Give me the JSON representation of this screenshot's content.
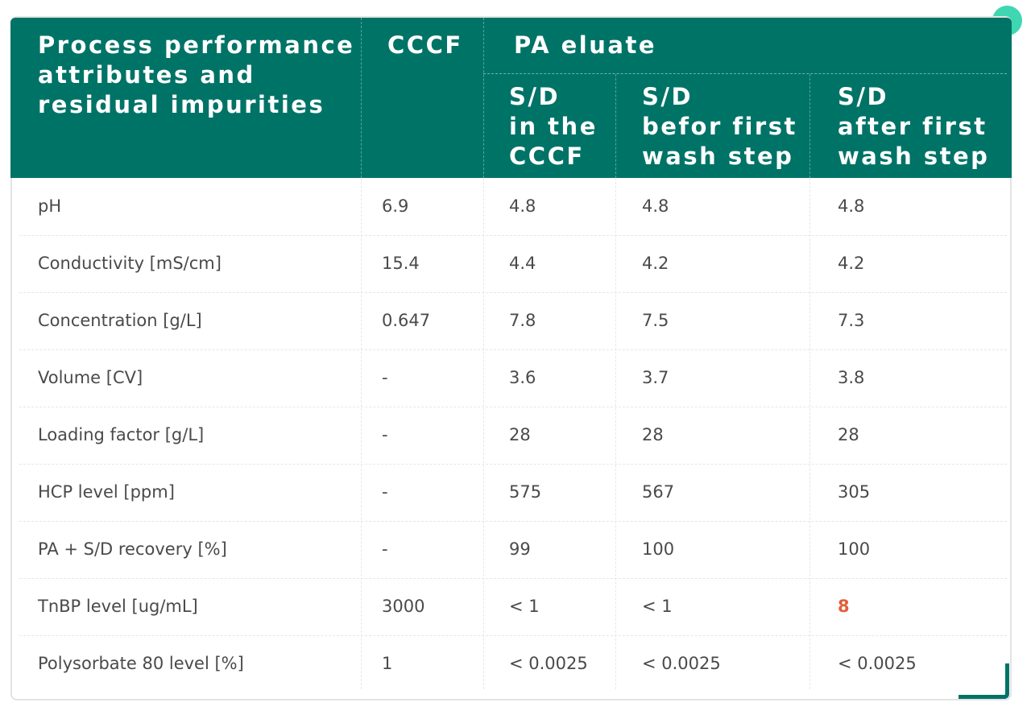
{
  "table": {
    "header": {
      "row_label": "Process performance\nattributes and\nresidual  impurities",
      "cccf": "CCCF",
      "group": "PA eluate",
      "subcolumns": [
        "S/D\nin the\nCCCF",
        "S/D\nbefor first\nwash step",
        "S/D\nafter first\nwash step"
      ]
    },
    "rows": [
      [
        "pH",
        "6.9",
        "4.8",
        "4.8",
        "4.8"
      ],
      [
        "Conductivity [mS/cm]",
        "15.4",
        "4.4",
        "4.2",
        "4.2"
      ],
      [
        "Concentration [g/L]",
        "0.647",
        "7.8",
        "7.5",
        "7.3"
      ],
      [
        "Volume [CV]",
        "-",
        "3.6",
        "3.7",
        "3.8"
      ],
      [
        "Loading factor [g/L]",
        "-",
        "28",
        "28",
        "28"
      ],
      [
        "HCP level [ppm]",
        "-",
        "575",
        "567",
        "305"
      ],
      [
        "PA + S/D recovery [%]",
        "-",
        "99",
        "100",
        "100"
      ],
      [
        "TnBP level [ug/mL]",
        "3000",
        "< 1",
        "< 1",
        "8"
      ],
      [
        "Polysorbate 80 level [%]",
        "1",
        "< 0.0025",
        "< 0.0025",
        "< 0.0025"
      ]
    ]
  }
}
